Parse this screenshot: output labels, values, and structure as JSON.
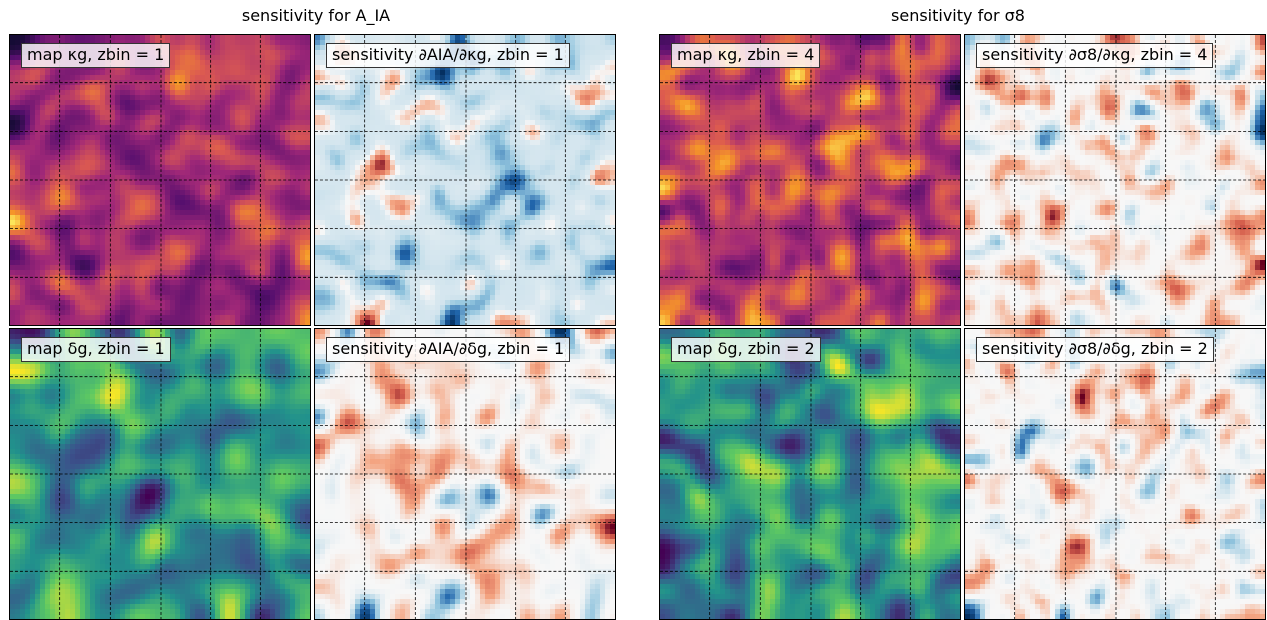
{
  "headers": {
    "left": "sensitivity for A_IA",
    "right": "sensitivity for σ8"
  },
  "chart_data": [
    {
      "type": "heatmap",
      "column": "left",
      "row": "top",
      "kind": "map",
      "colormap": "inferno",
      "label": "map κg, zbin = 1",
      "seed": 11,
      "scale": 5
    },
    {
      "type": "heatmap",
      "column": "left",
      "row": "top",
      "kind": "sensitivity",
      "colormap": "RdBu_r",
      "label": "sensitivity ∂AIA/∂κg, zbin = 1",
      "seed": 23,
      "scale": 4,
      "bias": -0.5
    },
    {
      "type": "heatmap",
      "column": "left",
      "row": "bottom",
      "kind": "map",
      "colormap": "viridis",
      "label": "map δg, zbin = 1",
      "seed": 37,
      "scale": 8
    },
    {
      "type": "heatmap",
      "column": "left",
      "row": "bottom",
      "kind": "sensitivity",
      "colormap": "RdBu_r",
      "label": "sensitivity ∂AIA/∂δg, zbin = 1",
      "seed": 41,
      "scale": 6,
      "bias": 0
    },
    {
      "type": "heatmap",
      "column": "right",
      "row": "top",
      "kind": "map",
      "colormap": "inferno",
      "label": "map κg, zbin = 4",
      "seed": 53,
      "scale": 4
    },
    {
      "type": "heatmap",
      "column": "right",
      "row": "top",
      "kind": "sensitivity",
      "colormap": "RdBu_r",
      "label": "sensitivity ∂σ8/∂κg, zbin = 4",
      "seed": 67,
      "scale": 3,
      "bias": 0
    },
    {
      "type": "heatmap",
      "column": "right",
      "row": "bottom",
      "kind": "map",
      "colormap": "viridis",
      "label": "map δg, zbin = 2",
      "seed": 71,
      "scale": 6
    },
    {
      "type": "heatmap",
      "column": "right",
      "row": "bottom",
      "kind": "sensitivity",
      "colormap": "RdBu_r",
      "label": "sensitivity ∂σ8/∂δg, zbin = 2",
      "seed": 83,
      "scale": 3,
      "bias": 0
    }
  ],
  "grid": {
    "style": "dashed",
    "color": "#000000"
  }
}
